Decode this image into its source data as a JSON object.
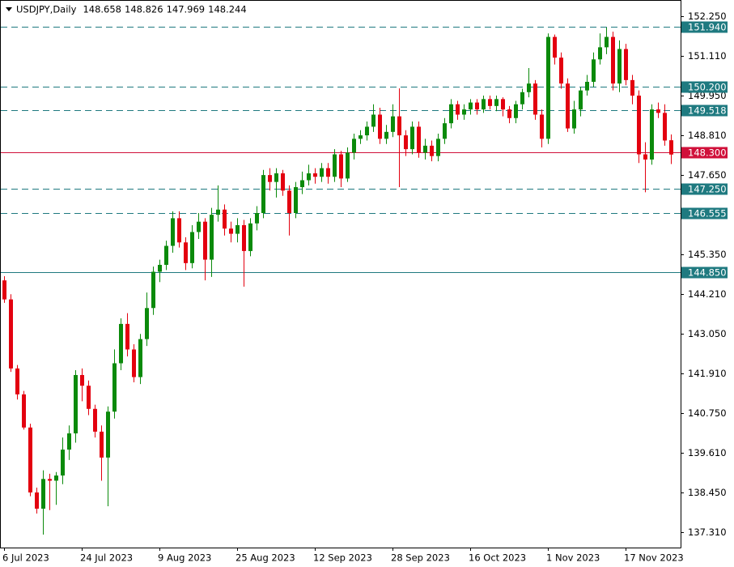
{
  "chart_data": {
    "type": "candlestick",
    "title": "USDJPY,Daily",
    "categories": [
      "6 Jul 2023",
      null,
      null,
      null,
      null,
      null,
      null,
      null,
      null,
      null,
      null,
      null,
      "24 Jul 2023",
      null,
      null,
      null,
      null,
      null,
      null,
      null,
      null,
      null,
      null,
      null,
      "9 Aug 2023",
      null,
      null,
      null,
      null,
      null,
      null,
      null,
      null,
      null,
      null,
      null,
      "25 Aug 2023",
      null,
      null,
      null,
      null,
      null,
      null,
      null,
      null,
      null,
      null,
      null,
      "12 Sep 2023",
      null,
      null,
      null,
      null,
      null,
      null,
      null,
      null,
      null,
      null,
      null,
      "28 Sep 2023",
      null,
      null,
      null,
      null,
      null,
      null,
      null,
      null,
      null,
      null,
      null,
      "16 Oct 2023",
      null,
      null,
      null,
      null,
      null,
      null,
      null,
      null,
      null,
      null,
      null,
      "1 Nov 2023",
      null,
      null,
      null,
      null,
      null,
      null,
      null,
      null,
      null,
      null,
      null,
      "17 Nov 2023",
      null,
      null,
      null,
      null,
      null,
      null,
      null
    ],
    "ohlc": [
      [
        144.6,
        144.72,
        143.95,
        144.05
      ],
      [
        144.05,
        144.2,
        141.95,
        142.05
      ],
      [
        142.05,
        142.15,
        141.15,
        141.3
      ],
      [
        141.3,
        141.4,
        140.28,
        140.34
      ],
      [
        140.34,
        140.45,
        138.35,
        138.46
      ],
      [
        138.46,
        138.6,
        137.85,
        137.99
      ],
      [
        137.99,
        139.1,
        137.24,
        138.85
      ],
      [
        138.85,
        139.0,
        137.95,
        138.8
      ],
      [
        138.8,
        139.05,
        138.1,
        138.95
      ],
      [
        138.95,
        140.05,
        138.7,
        139.7
      ],
      [
        139.7,
        140.4,
        139.4,
        140.17
      ],
      [
        140.17,
        142.0,
        139.9,
        141.86
      ],
      [
        141.86,
        142.05,
        141.1,
        141.55
      ],
      [
        141.55,
        141.7,
        140.7,
        140.88
      ],
      [
        140.88,
        141.0,
        140.05,
        140.22
      ],
      [
        140.22,
        140.4,
        138.8,
        139.47
      ],
      [
        139.47,
        140.95,
        138.06,
        140.8
      ],
      [
        140.8,
        142.6,
        140.6,
        142.2
      ],
      [
        142.2,
        143.5,
        142.0,
        143.34
      ],
      [
        143.34,
        143.65,
        142.4,
        142.6
      ],
      [
        142.6,
        142.75,
        141.65,
        141.8
      ],
      [
        141.8,
        143.05,
        141.6,
        142.9
      ],
      [
        142.9,
        144.25,
        142.7,
        143.8
      ],
      [
        143.8,
        145.0,
        143.6,
        144.85
      ],
      [
        144.85,
        145.2,
        144.55,
        145.05
      ],
      [
        145.05,
        145.75,
        144.9,
        145.6
      ],
      [
        145.6,
        146.6,
        145.4,
        146.4
      ],
      [
        146.4,
        146.6,
        145.55,
        145.7
      ],
      [
        145.7,
        145.85,
        144.9,
        145.1
      ],
      [
        145.1,
        146.2,
        144.95,
        146.0
      ],
      [
        146.0,
        146.55,
        145.8,
        146.3
      ],
      [
        146.3,
        146.4,
        144.6,
        145.2
      ],
      [
        145.2,
        146.7,
        144.7,
        146.5
      ],
      [
        146.5,
        147.35,
        146.3,
        146.65
      ],
      [
        146.65,
        146.8,
        145.9,
        146.1
      ],
      [
        146.1,
        146.3,
        145.7,
        145.95
      ],
      [
        145.95,
        146.4,
        145.7,
        146.2
      ],
      [
        146.2,
        146.35,
        144.42,
        145.45
      ],
      [
        145.45,
        146.4,
        145.3,
        146.25
      ],
      [
        146.25,
        146.75,
        146.05,
        146.55
      ],
      [
        146.55,
        147.8,
        146.4,
        147.65
      ],
      [
        147.65,
        147.85,
        147.2,
        147.45
      ],
      [
        147.45,
        147.85,
        147.0,
        147.7
      ],
      [
        147.7,
        147.8,
        147.05,
        147.2
      ],
      [
        147.2,
        147.35,
        145.9,
        146.55
      ],
      [
        146.55,
        147.45,
        146.4,
        147.3
      ],
      [
        147.3,
        147.75,
        147.1,
        147.5
      ],
      [
        147.5,
        147.95,
        147.35,
        147.7
      ],
      [
        147.7,
        147.85,
        147.4,
        147.6
      ],
      [
        147.6,
        148.0,
        147.45,
        147.85
      ],
      [
        147.85,
        148.0,
        147.4,
        147.6
      ],
      [
        147.6,
        148.4,
        147.45,
        148.25
      ],
      [
        148.25,
        148.35,
        147.3,
        147.55
      ],
      [
        147.55,
        148.45,
        147.45,
        148.3
      ],
      [
        148.3,
        148.85,
        148.1,
        148.7
      ],
      [
        148.7,
        148.95,
        148.55,
        148.8
      ],
      [
        148.8,
        149.2,
        148.65,
        149.05
      ],
      [
        149.05,
        149.7,
        148.9,
        149.4
      ],
      [
        149.4,
        149.6,
        148.55,
        148.7
      ],
      [
        148.7,
        149.1,
        148.55,
        148.9
      ],
      [
        148.9,
        149.7,
        148.75,
        149.35
      ],
      [
        149.35,
        150.16,
        147.3,
        148.8
      ],
      [
        148.8,
        148.95,
        148.2,
        148.4
      ],
      [
        148.4,
        149.2,
        148.25,
        149.05
      ],
      [
        149.05,
        149.2,
        148.15,
        148.3
      ],
      [
        148.3,
        148.7,
        148.1,
        148.5
      ],
      [
        148.5,
        148.65,
        148.05,
        148.2
      ],
      [
        148.2,
        148.85,
        148.05,
        148.7
      ],
      [
        148.7,
        149.3,
        148.55,
        149.15
      ],
      [
        149.15,
        149.85,
        149.0,
        149.7
      ],
      [
        149.7,
        149.8,
        149.25,
        149.4
      ],
      [
        149.4,
        149.7,
        149.25,
        149.55
      ],
      [
        149.55,
        149.85,
        149.4,
        149.75
      ],
      [
        149.75,
        149.85,
        149.4,
        149.55
      ],
      [
        149.55,
        149.95,
        149.45,
        149.85
      ],
      [
        149.85,
        149.95,
        149.55,
        149.65
      ],
      [
        149.65,
        149.95,
        149.5,
        149.85
      ],
      [
        149.85,
        149.9,
        149.35,
        149.55
      ],
      [
        149.55,
        149.65,
        149.15,
        149.3
      ],
      [
        149.3,
        149.8,
        149.15,
        149.7
      ],
      [
        149.7,
        150.15,
        149.55,
        150.05
      ],
      [
        150.05,
        150.75,
        149.9,
        150.3
      ],
      [
        150.3,
        150.4,
        149.25,
        149.4
      ],
      [
        149.4,
        149.55,
        148.45,
        148.7
      ],
      [
        148.7,
        151.75,
        148.55,
        151.65
      ],
      [
        151.65,
        151.72,
        150.85,
        151.05
      ],
      [
        151.05,
        151.2,
        150.15,
        150.3
      ],
      [
        150.3,
        150.45,
        148.9,
        149.0
      ],
      [
        149.0,
        149.8,
        148.85,
        149.55
      ],
      [
        149.55,
        150.2,
        149.35,
        150.1
      ],
      [
        150.1,
        150.55,
        149.95,
        150.35
      ],
      [
        150.35,
        151.2,
        150.2,
        151.0
      ],
      [
        151.0,
        151.75,
        150.85,
        151.35
      ],
      [
        151.35,
        151.92,
        151.15,
        151.65
      ],
      [
        151.65,
        151.8,
        150.1,
        150.3
      ],
      [
        150.3,
        151.55,
        150.05,
        151.3
      ],
      [
        151.3,
        151.45,
        150.25,
        150.4
      ],
      [
        150.4,
        150.55,
        149.7,
        149.95
      ],
      [
        149.95,
        150.1,
        148.0,
        148.25
      ],
      [
        148.25,
        148.6,
        147.15,
        148.1
      ],
      [
        148.1,
        149.7,
        147.95,
        149.55
      ],
      [
        149.55,
        149.75,
        149.3,
        149.45
      ],
      [
        149.45,
        149.7,
        148.5,
        148.65
      ],
      [
        148.658,
        148.826,
        147.969,
        148.244
      ]
    ],
    "up_color": "#0b8a0b",
    "down_color": "#e3000f",
    "ylim": [
      136.864,
      152.625
    ],
    "yticks": [
      {
        "value": 152.25,
        "label": "152.250"
      },
      {
        "value": 151.11,
        "label": "151.110"
      },
      {
        "value": 149.95,
        "label": "149.950"
      },
      {
        "value": 148.81,
        "label": "148.810"
      },
      {
        "value": 147.65,
        "label": "147.650"
      },
      {
        "value": 145.35,
        "label": "145.350"
      },
      {
        "value": 144.21,
        "label": "144.210"
      },
      {
        "value": 143.05,
        "label": "143.050"
      },
      {
        "value": 141.91,
        "label": "141.910"
      },
      {
        "value": 140.75,
        "label": "140.750"
      },
      {
        "value": 139.61,
        "label": "139.610"
      },
      {
        "value": 138.45,
        "label": "138.450"
      },
      {
        "value": 137.31,
        "label": "137.310"
      }
    ],
    "levels": [
      {
        "value": 151.94,
        "label": "151.940",
        "color": "#1f7a80",
        "dashed": true
      },
      {
        "value": 150.2,
        "label": "150.200",
        "color": "#1f7a80",
        "dashed": true
      },
      {
        "value": 149.518,
        "label": "149.518",
        "color": "#1f7a80",
        "dashed": true
      },
      {
        "value": 148.3,
        "label": "148.300",
        "color": "#d0103a",
        "dashed": false
      },
      {
        "value": 147.25,
        "label": "147.250",
        "color": "#1f7a80",
        "dashed": true
      },
      {
        "value": 146.555,
        "label": "146.555",
        "color": "#1f7a80",
        "dashed": true
      },
      {
        "value": 144.85,
        "label": "144.850",
        "color": "#1f7a80",
        "dashed": false
      }
    ]
  }
}
